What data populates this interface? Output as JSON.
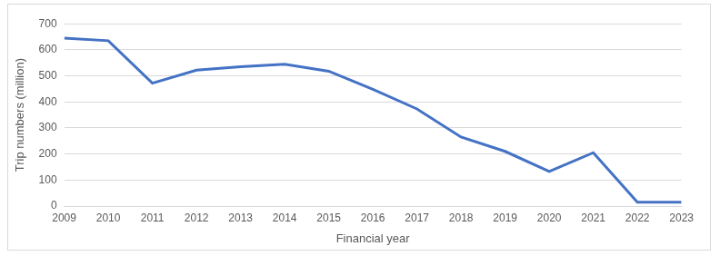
{
  "chart_data": {
    "type": "line",
    "x_label": "Financial year",
    "y_label": "Trip numbers (million)",
    "categories": [
      "2009",
      "2010",
      "2011",
      "2012",
      "2013",
      "2014",
      "2015",
      "2016",
      "2017",
      "2018",
      "2019",
      "2020",
      "2021",
      "2022",
      "2023"
    ],
    "values": [
      645,
      635,
      472,
      522,
      535,
      545,
      518,
      448,
      373,
      265,
      210,
      133,
      205,
      15,
      15
    ],
    "color": "#4472c4",
    "marker": "none",
    "line_style": "solid",
    "ylim": [
      0,
      700
    ],
    "yticks": [
      0,
      100,
      200,
      300,
      400,
      500,
      600,
      700
    ],
    "grid": true
  }
}
